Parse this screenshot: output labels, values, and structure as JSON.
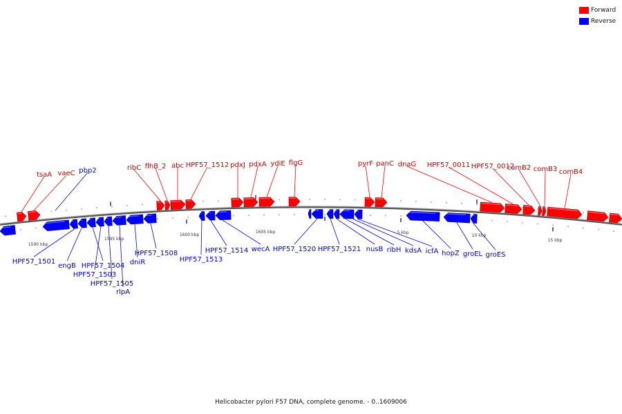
{
  "legend": {
    "forward_label": "Forward",
    "reverse_label": "Reverse",
    "forward_color": "#ff0000",
    "reverse_color": "#0000ff"
  },
  "caption": "Helicobacter pylori F57 DNA, complete genome. - 0..1609006",
  "scale_labels": [
    "1590 kbp",
    "1595 kbp",
    "1600 kbp",
    "1605 kbp",
    "5 kbp",
    "10 kbp",
    "15 kbp"
  ],
  "forward_genes": [
    "tsaA",
    "vaeC",
    "ribC",
    "flhB_2",
    "abc",
    "HPF57_1512",
    "pdxJ",
    "pdxA",
    "ydiE",
    "flgG",
    "pyrF",
    "panC",
    "dnaG",
    "HPF57_0011",
    "HPF57_0012",
    "comB2",
    "comB3",
    "comB4"
  ],
  "reverse_genes": [
    "pbp2",
    "HPF57_1501",
    "engB",
    "HPF57_1504",
    "HPF57_1503",
    "HPF57_1505",
    "rlpA",
    "dniR",
    "HPF57_1508",
    "HPF57_1513",
    "HPF57_1514",
    "wecA",
    "HPF57_1520",
    "HPF57_1521",
    "nusB",
    "ribH",
    "kdsA",
    "icfA",
    "hopZ",
    "groEL",
    "groES"
  ]
}
